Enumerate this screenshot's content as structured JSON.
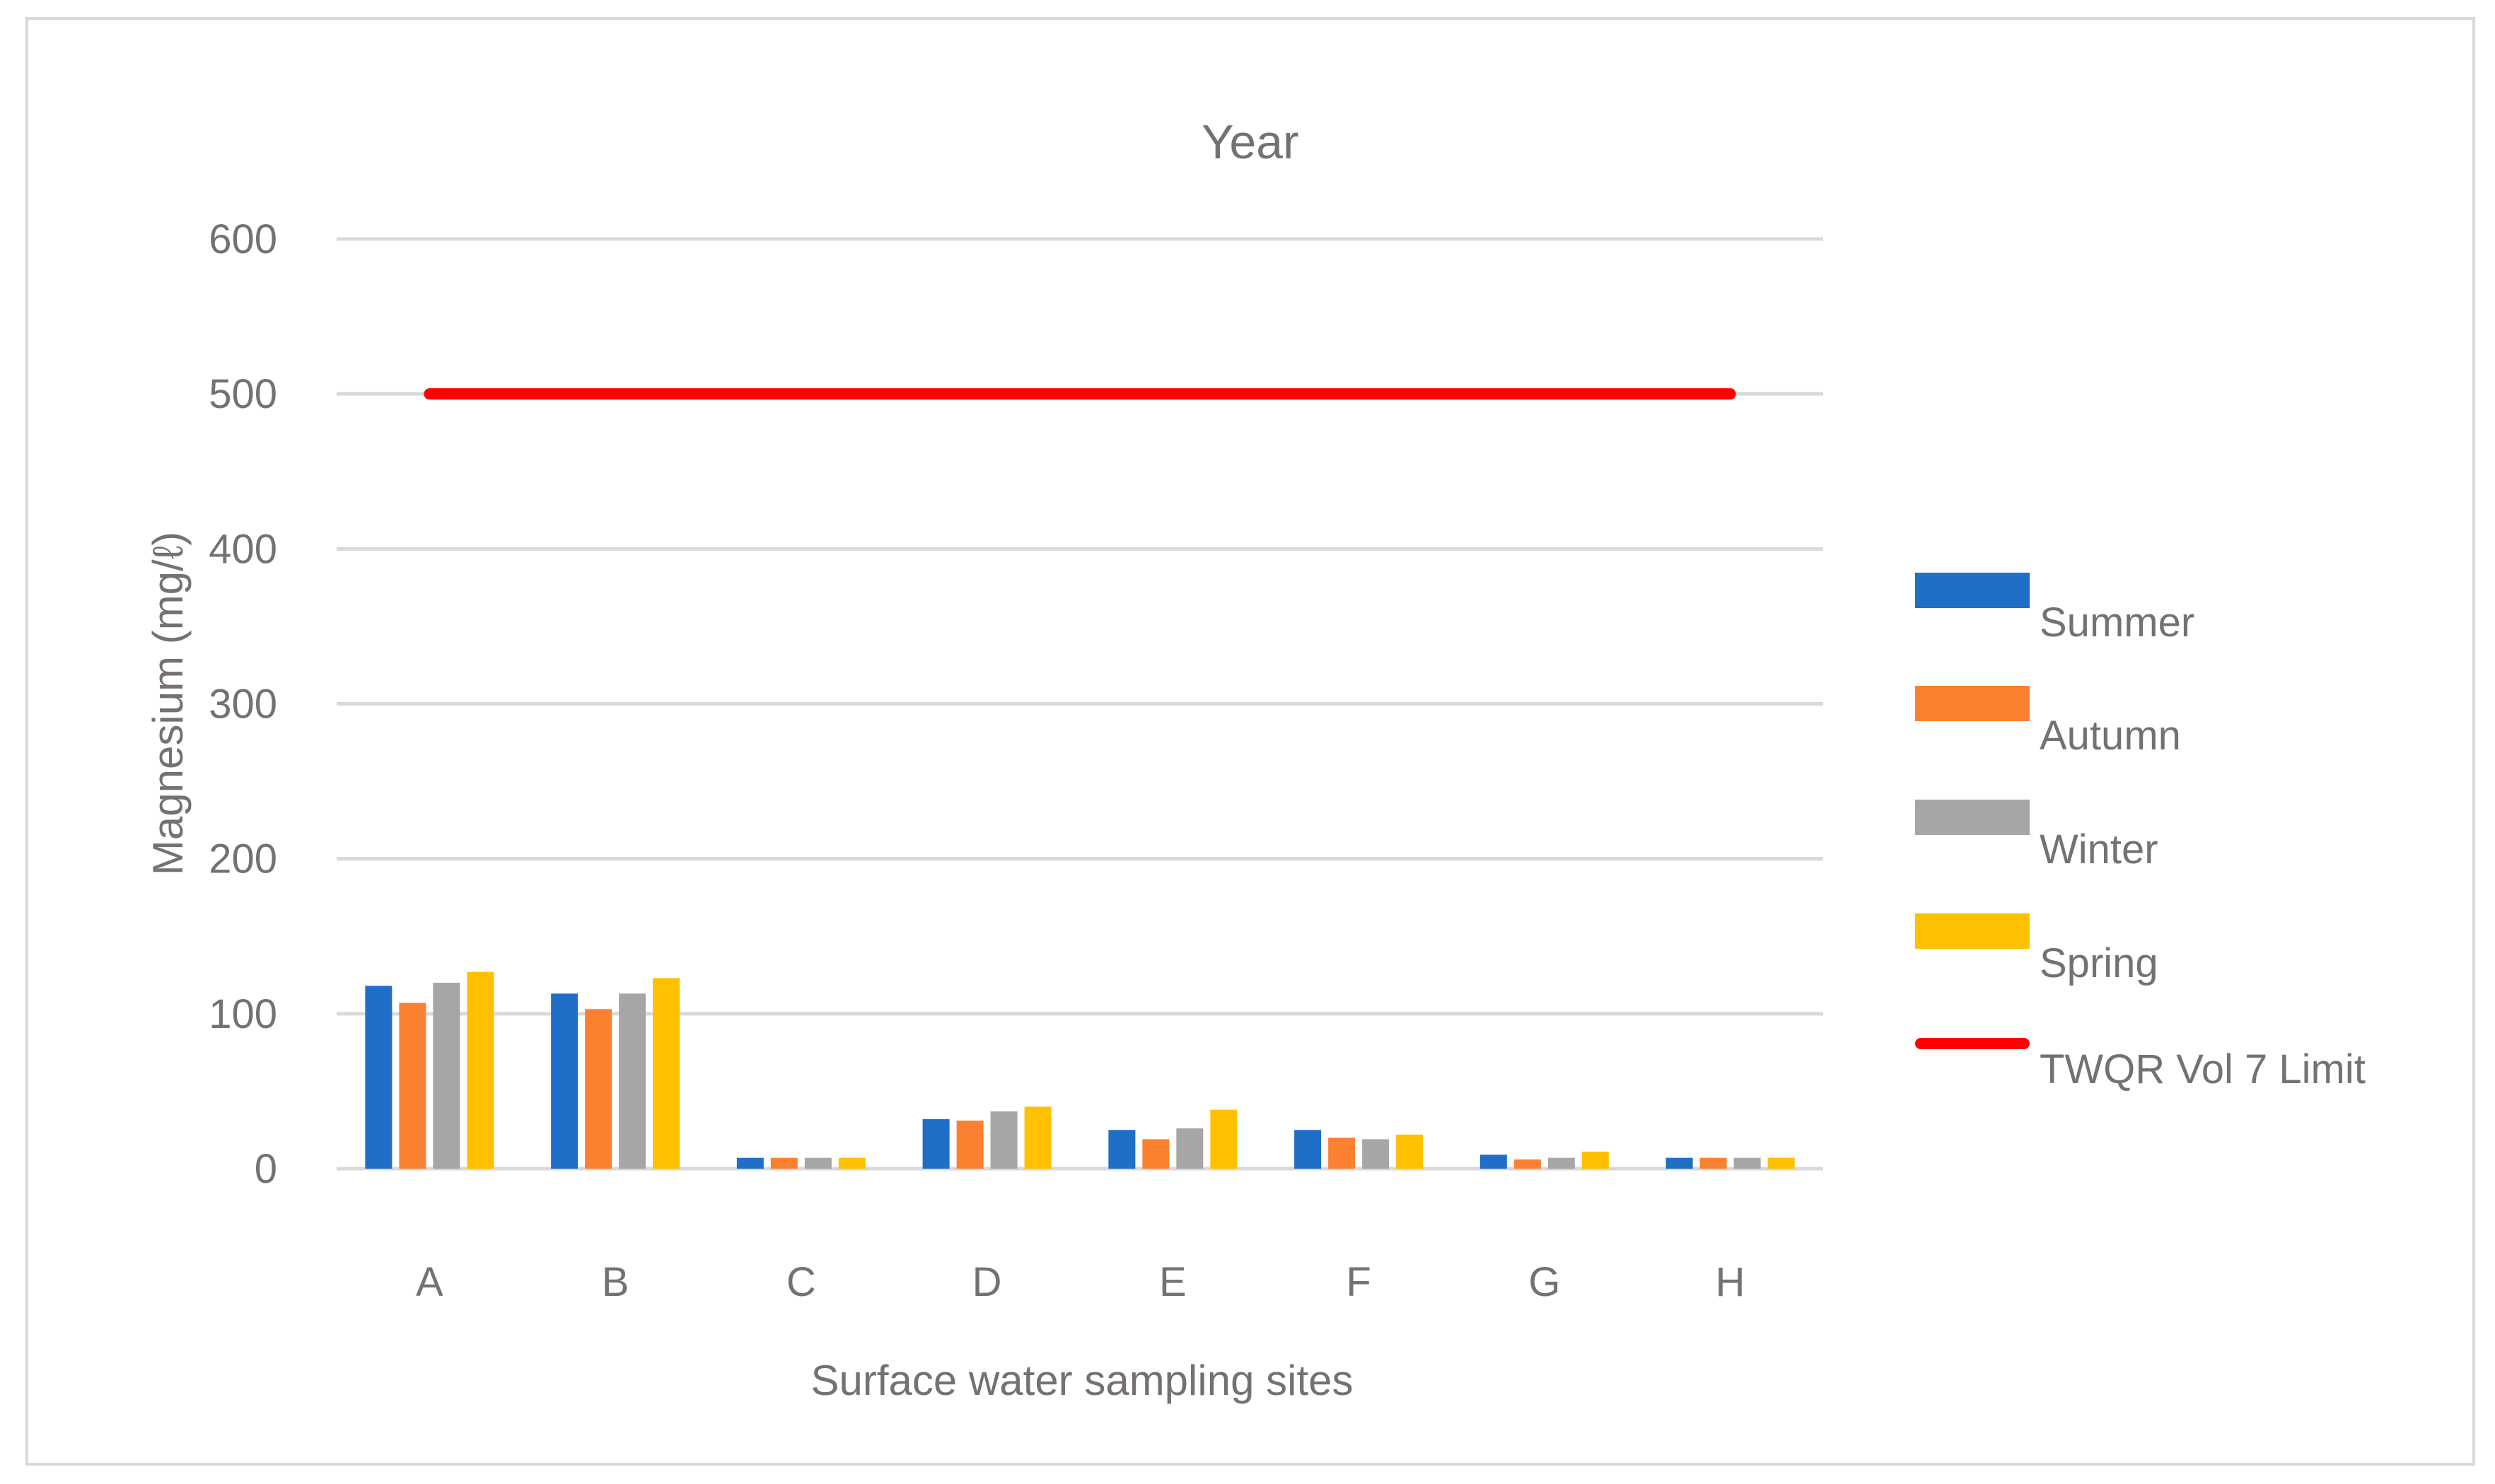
{
  "chart_data": {
    "type": "bar",
    "title": "Year",
    "xlabel": "Surface water sampling sites",
    "ylabel": "Magnesium (mg/ℓ)",
    "ylim": [
      0,
      600
    ],
    "yticks": [
      0,
      100,
      200,
      300,
      400,
      500,
      600
    ],
    "ytick_labels": [
      "0",
      "100",
      "200",
      "300",
      "400",
      "500",
      "600"
    ],
    "grid": true,
    "legend_position": "right",
    "categories": [
      "A",
      "B",
      "C",
      "D",
      "E",
      "F",
      "G",
      "H"
    ],
    "series": [
      {
        "name": "Summer",
        "color": "#1f6fc8",
        "values": [
          118,
          113,
          7,
          32,
          25,
          25,
          9,
          7
        ]
      },
      {
        "name": "Autumn",
        "color": "#fb8130",
        "values": [
          107,
          103,
          7,
          31,
          19,
          20,
          6,
          7
        ]
      },
      {
        "name": "Winter",
        "color": "#a6a6a6",
        "values": [
          120,
          113,
          7,
          37,
          26,
          19,
          7,
          7
        ]
      },
      {
        "name": "Spring",
        "color": "#ffc000",
        "values": [
          127,
          123,
          7,
          40,
          38,
          22,
          11,
          7
        ]
      }
    ],
    "limit_line": {
      "name": "TWQR Vol 7 Limit",
      "value": 500,
      "color": "#ff0000"
    }
  }
}
